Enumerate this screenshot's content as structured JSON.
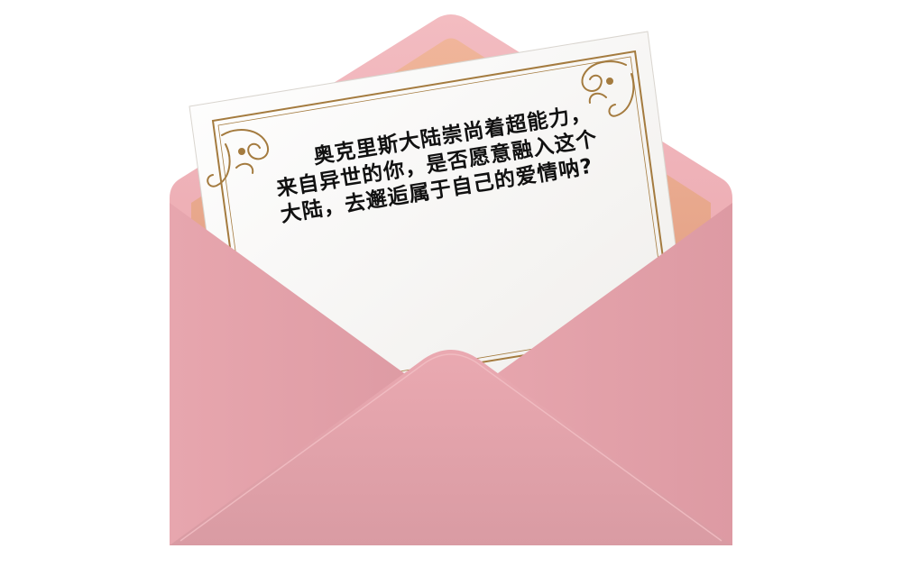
{
  "letter": {
    "lines": [
      "奥克里斯大陆崇尚着超能力，",
      "来自异世的你，是否愿意融入这个",
      "大陆，去邂逅属于自己的爱情呐?"
    ]
  },
  "colors": {
    "envelope_back": "#f0b3b8",
    "envelope_inner": "#e9a58a",
    "envelope_front": "#e6a3ab",
    "envelope_shadow": "#d98e98",
    "card": "#faf9f7",
    "ornament": "#a47b3f",
    "text": "#111111"
  },
  "icons": [
    "corner-ornament-icon"
  ]
}
